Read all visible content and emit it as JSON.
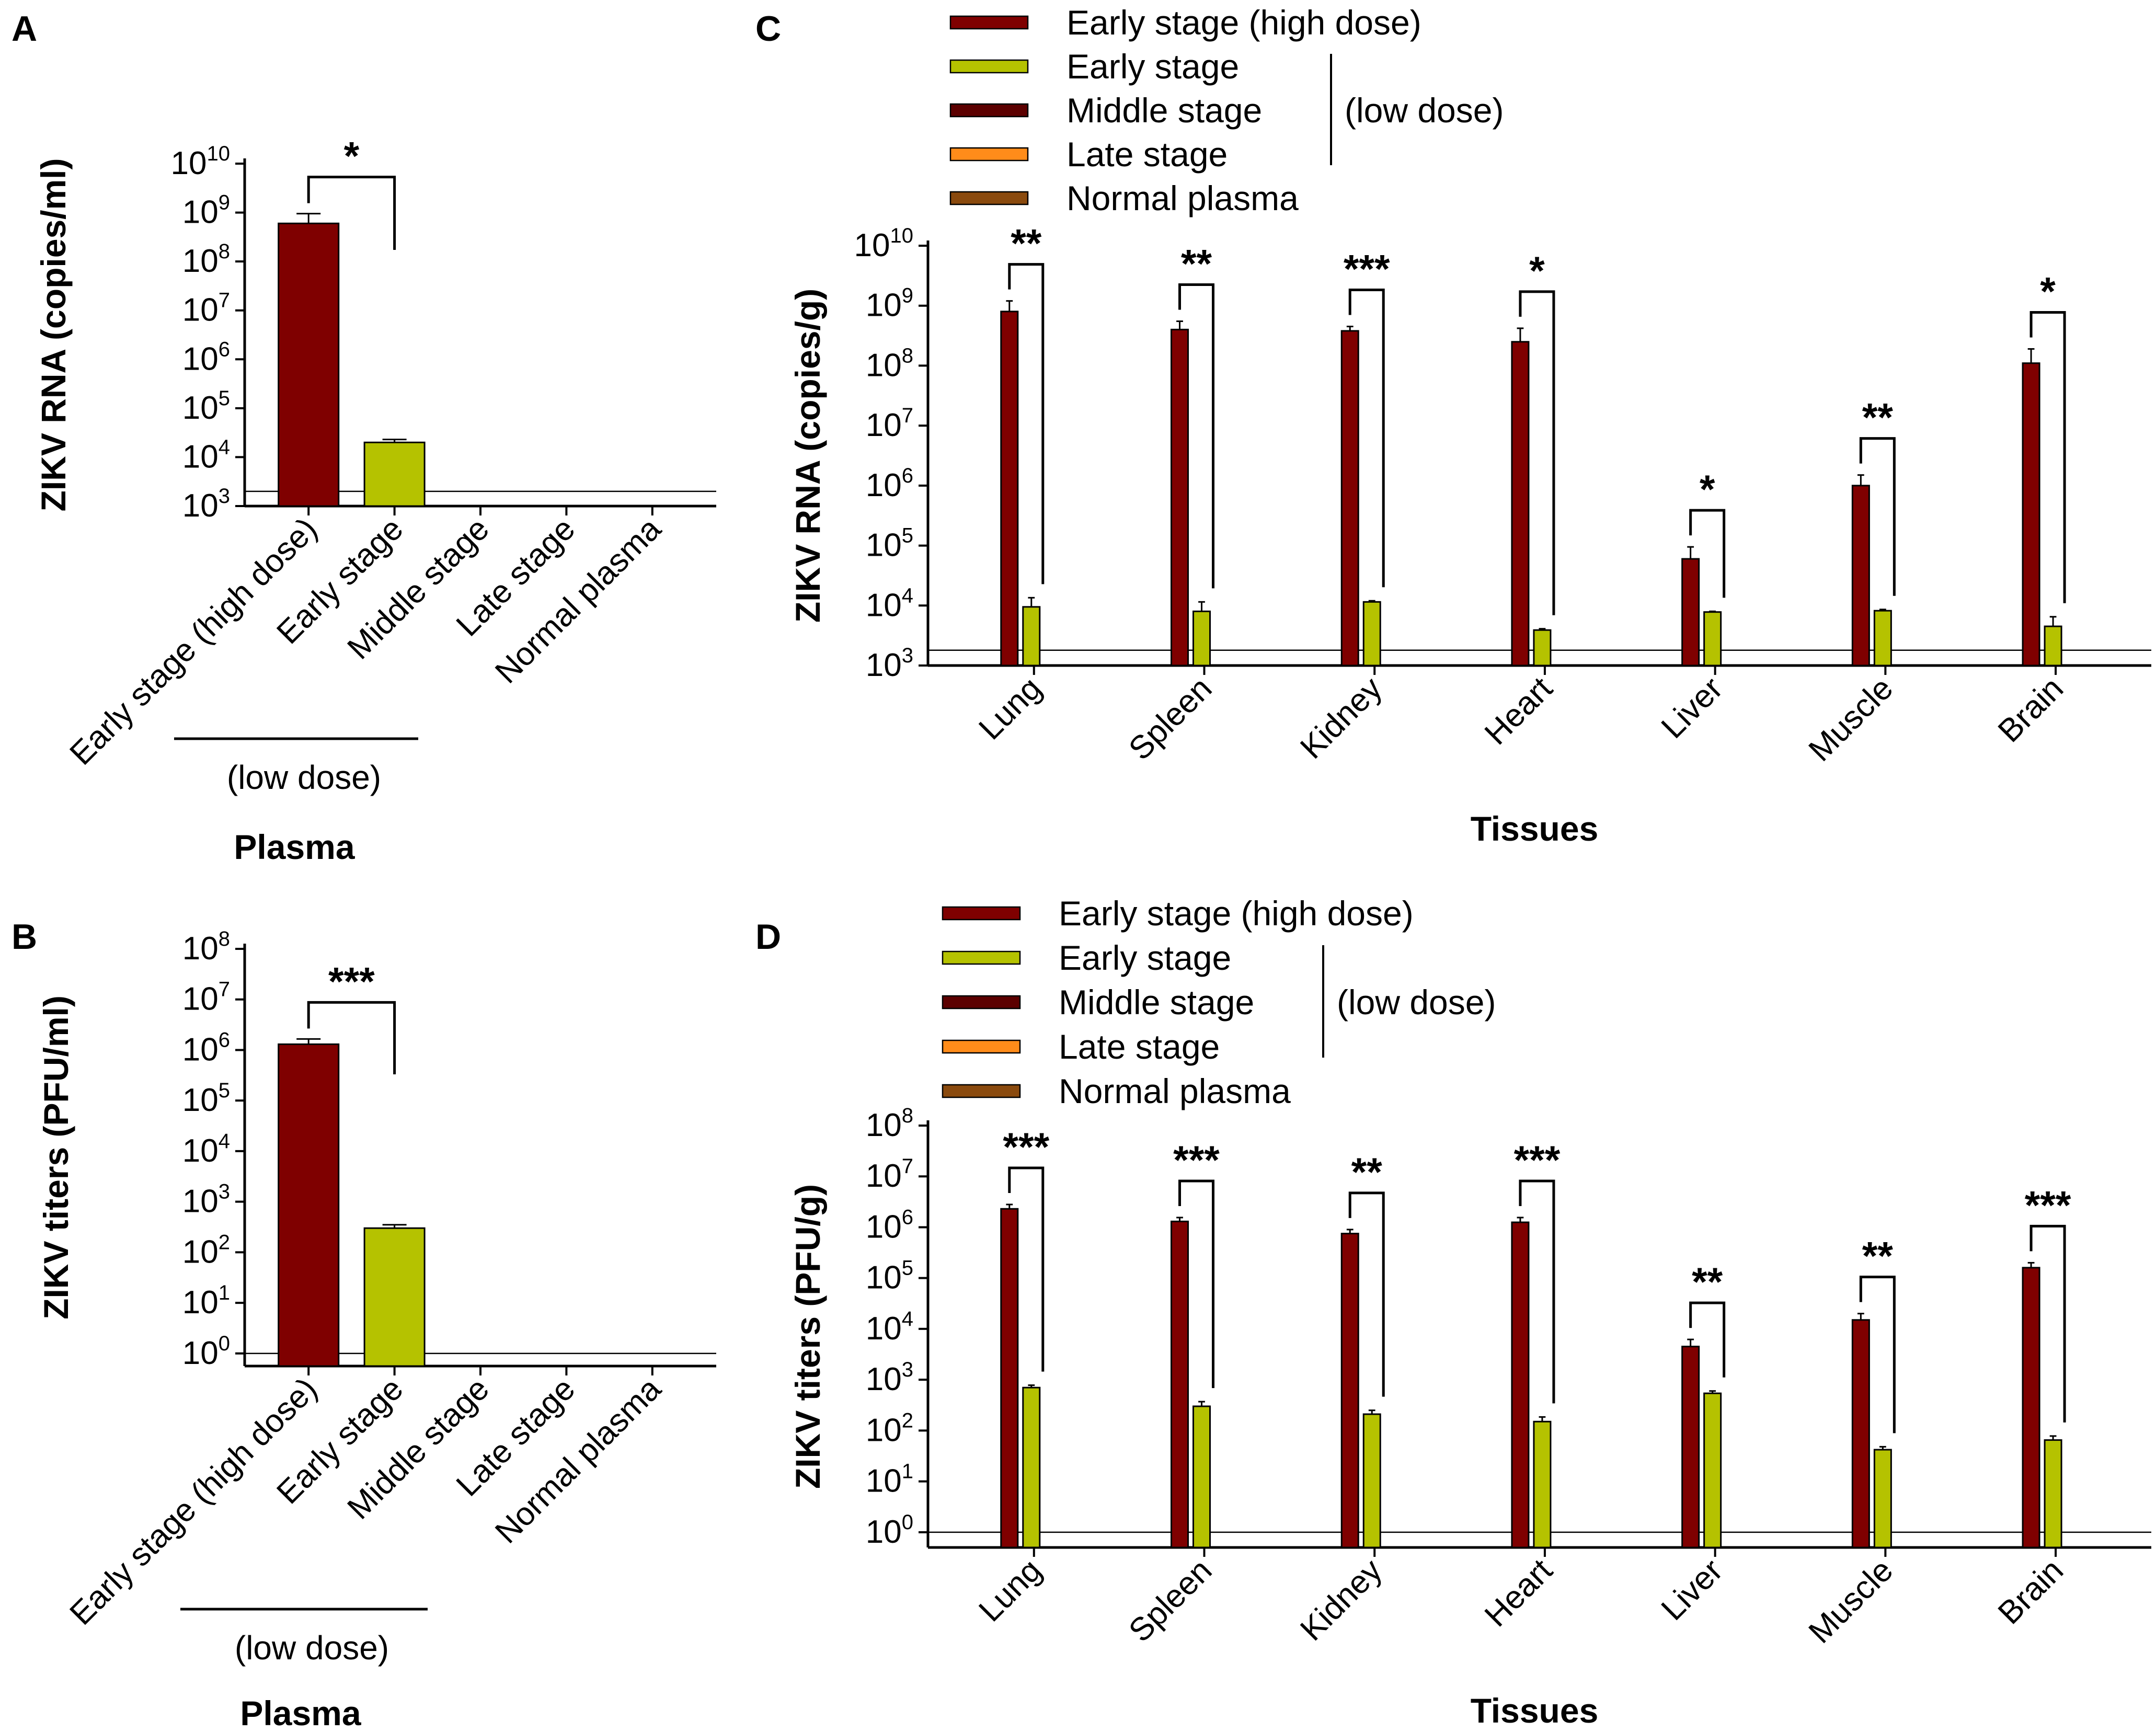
{
  "figure": {
    "colors": {
      "early_high": "#7f0000",
      "early_low": "#b5c200",
      "middle": "#5c0000",
      "late": "#ff8c1a",
      "normal": "#8a4a0e"
    },
    "legend_items": [
      "Early stage (high dose)",
      "Early stage",
      "Middle stage",
      "Late stage",
      "Normal plasma"
    ],
    "legend_group": "(low dose)"
  },
  "chart_data": [
    {
      "panel": "A",
      "type": "bar",
      "scale": "log10",
      "ylabel": "ZIKV RNA (copies/ml)",
      "xlabel": "Plasma",
      "group_label": "(low dose)",
      "ylim_exp": [
        3,
        10
      ],
      "detection_limit": 2000,
      "categories": [
        "Early stage (high dose)",
        "Early stage",
        "Middle stage",
        "Late stage",
        "Normal plasma"
      ],
      "values": [
        600000000,
        20000,
        null,
        null,
        null
      ],
      "errors": [
        950000000,
        23000,
        null,
        null,
        null
      ],
      "significance": [
        {
          "from": 0,
          "to": 1,
          "label": "*"
        }
      ]
    },
    {
      "panel": "B",
      "type": "bar",
      "scale": "log10",
      "ylabel": "ZIKV titers (PFU/ml)",
      "xlabel": "Plasma",
      "group_label": "(low dose)",
      "ylim_exp": [
        -0.25,
        8
      ],
      "detection_limit": 1,
      "categories": [
        "Early stage (high dose)",
        "Early stage",
        "Middle stage",
        "Late stage",
        "Normal plasma"
      ],
      "values": [
        1300000,
        300,
        null,
        null,
        null
      ],
      "errors": [
        1650000,
        350,
        null,
        null,
        null
      ],
      "significance": [
        {
          "from": 0,
          "to": 1,
          "label": "***"
        }
      ]
    },
    {
      "panel": "C",
      "type": "bar",
      "scale": "log10",
      "ylabel": "ZIKV RNA (copies/g)",
      "xlabel": "Tissues",
      "ylim_exp": [
        3,
        10
      ],
      "detection_limit": 1800,
      "categories": [
        "Lung",
        "Spleen",
        "Kidney",
        "Heart",
        "Liver",
        "Muscle",
        "Brain"
      ],
      "series": [
        {
          "name": "Early stage (high dose)",
          "values": [
            800000000,
            400000000,
            380000000,
            250000000,
            60000,
            1000000,
            110000000
          ],
          "errors": [
            1200000000,
            550000000,
            450000000,
            420000000,
            95000,
            1500000,
            190000000
          ]
        },
        {
          "name": "Early stage (low dose)",
          "values": [
            9500,
            8000,
            11500,
            3900,
            7800,
            8200,
            4500
          ],
          "errors": [
            13500,
            11500,
            12000,
            4100,
            8000,
            8600,
            6500
          ]
        }
      ],
      "significance": [
        "**",
        "**",
        "***",
        "*",
        "*",
        "**",
        "*"
      ]
    },
    {
      "panel": "D",
      "type": "bar",
      "scale": "log10",
      "ylabel": "ZIKV titers (PFU/g)",
      "xlabel": "Tissues",
      "ylim_exp": [
        -0.3,
        8
      ],
      "detection_limit": 1,
      "categories": [
        "Lung",
        "Spleen",
        "Kidney",
        "Heart",
        "Liver",
        "Muscle",
        "Brain"
      ],
      "series": [
        {
          "name": "Early stage (high dose)",
          "values": [
            2300000,
            1300000,
            750000,
            1250000,
            4500,
            15000,
            160000
          ],
          "errors": [
            2800000,
            1550000,
            900000,
            1550000,
            6200,
            20000,
            200000
          ]
        },
        {
          "name": "Early stage (low dose)",
          "values": [
            700,
            300,
            210,
            150,
            540,
            42,
            65
          ],
          "errors": [
            780,
            370,
            250,
            185,
            600,
            48,
            78
          ]
        }
      ],
      "significance": [
        "***",
        "***",
        "**",
        "***",
        "**",
        "**",
        "***"
      ]
    }
  ]
}
